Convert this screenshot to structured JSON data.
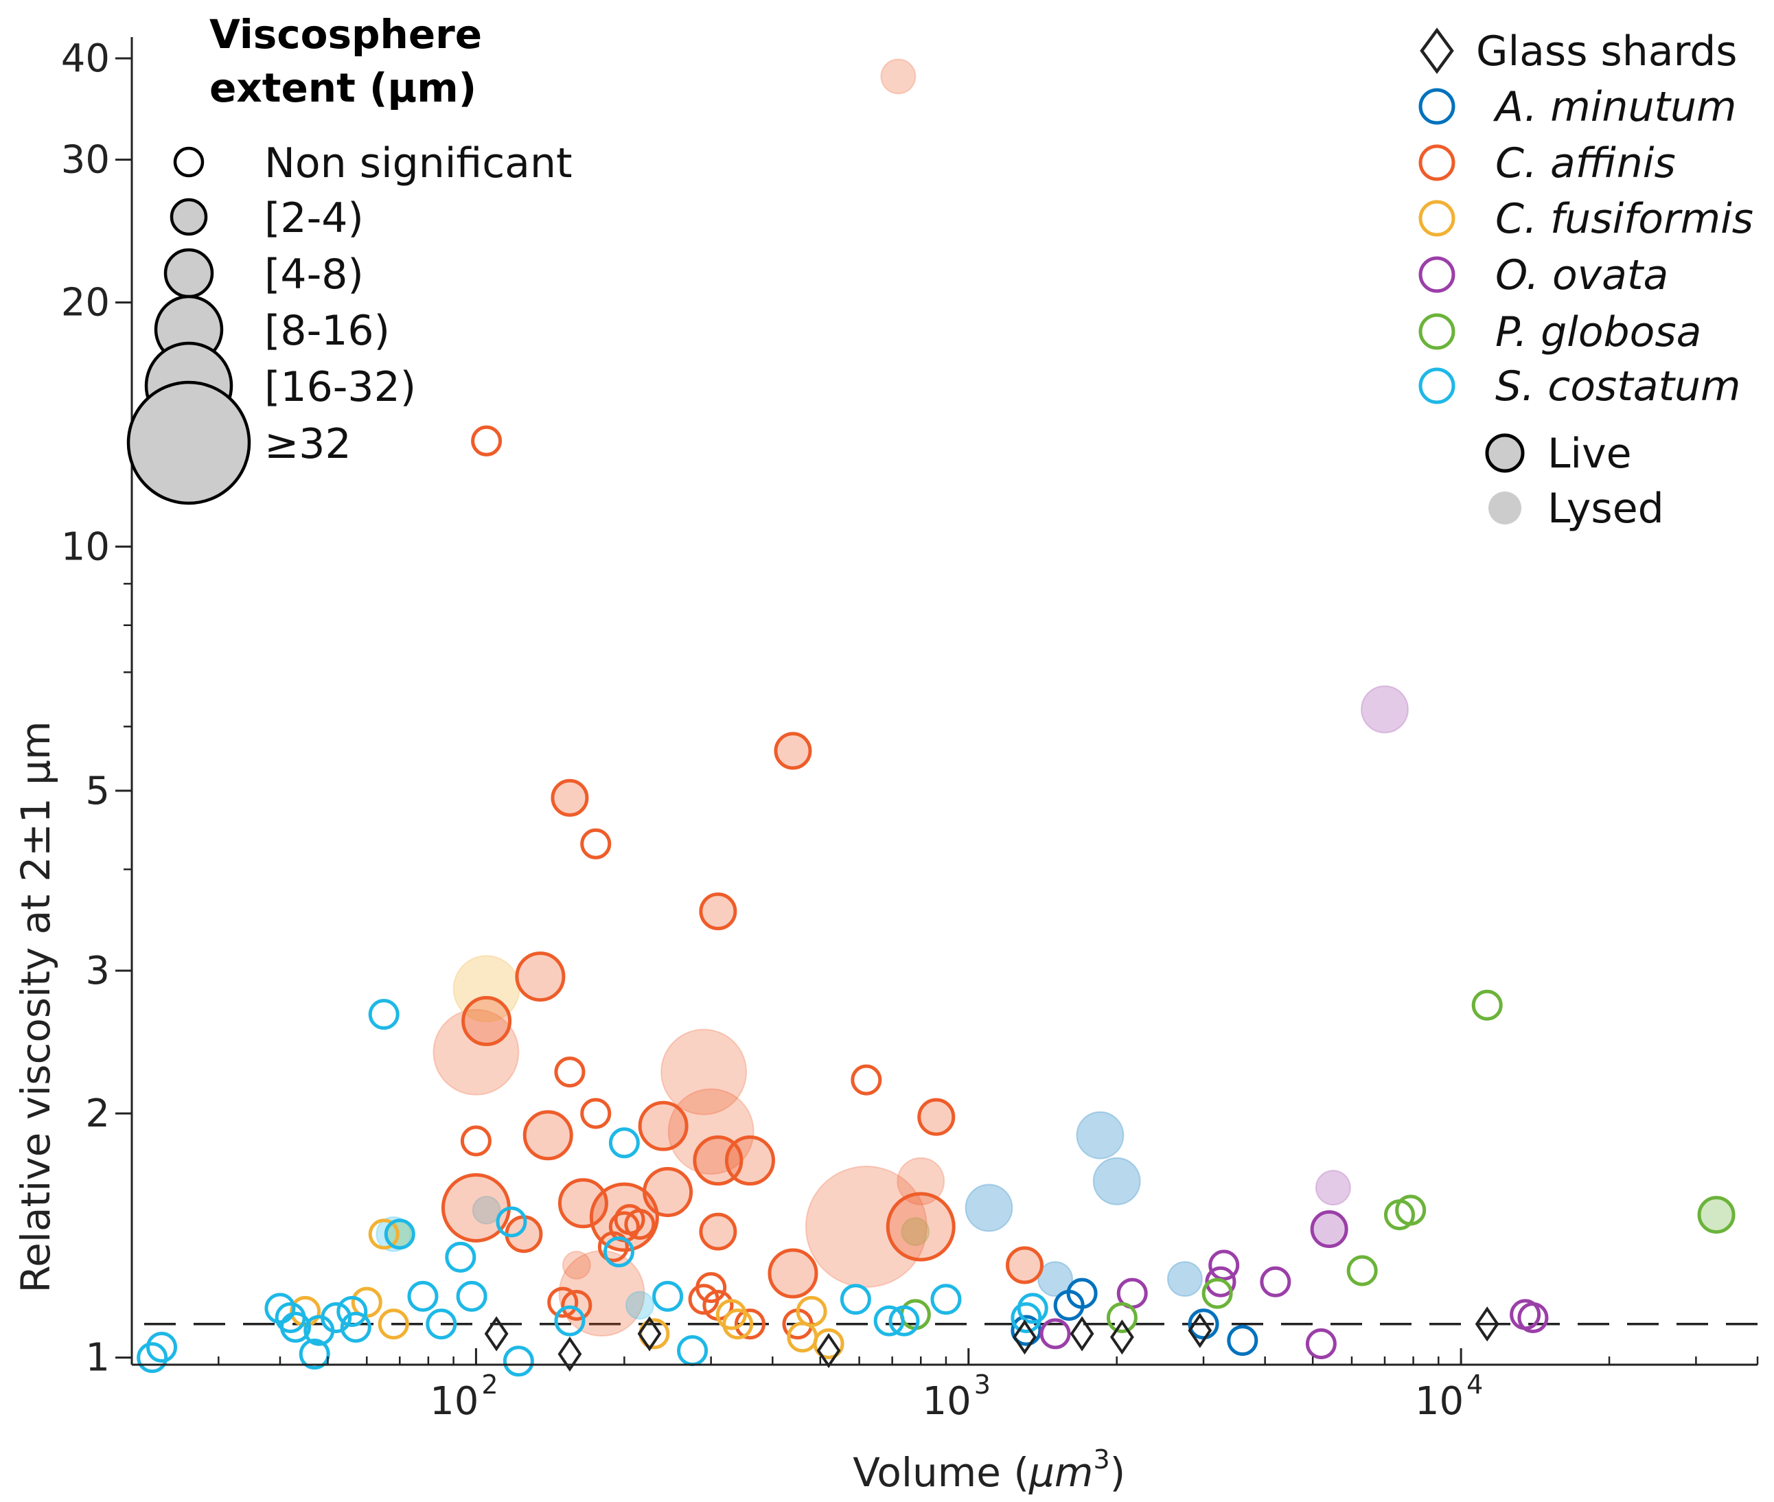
{
  "chart_data": {
    "type": "scatter",
    "xlabel_main": "Volume (",
    "xlabel_unit": "μm",
    "xlabel_exp": "3",
    "xlabel_close": ")",
    "ylabel": "Relative viscosity at 2±1 μm",
    "x_scale": "log",
    "y_scale": "log",
    "xlim": [
      20,
      40000
    ],
    "ylim": [
      0.98,
      42
    ],
    "y_ticks": [
      {
        "value": 1,
        "label": "1"
      },
      {
        "value": 2,
        "label": "2"
      },
      {
        "value": 3,
        "label": "3"
      },
      {
        "value": 5,
        "label": "5"
      },
      {
        "value": 10,
        "label": "10"
      },
      {
        "value": 20,
        "label": "20"
      },
      {
        "value": 30,
        "label": "30"
      },
      {
        "value": 40,
        "label": "40"
      }
    ],
    "y_minor_ticks": [
      4,
      6,
      7,
      8,
      9
    ],
    "x_ticks": [
      {
        "value": 100,
        "base": "10",
        "exp": "2"
      },
      {
        "value": 1000,
        "base": "10",
        "exp": "3"
      },
      {
        "value": 10000,
        "base": "10",
        "exp": "4"
      }
    ],
    "reference_line": {
      "y": 1.1,
      "style": "dashed",
      "color": "#222222"
    },
    "legend_size": {
      "title_line1": "Viscosphere",
      "title_line2": "extent (μm)",
      "entries": [
        {
          "label": "Non significant",
          "size": 0
        },
        {
          "label": "[2-4)",
          "size": 1
        },
        {
          "label": "[4-8)",
          "size": 2
        },
        {
          "label": "[8-16)",
          "size": 3
        },
        {
          "label": "[16-32)",
          "size": 4
        },
        {
          "label": "≥32",
          "size": 5
        }
      ]
    },
    "legend_species": [
      {
        "label": "Glass shards",
        "marker": "diamond",
        "color": "#222222",
        "italic": false
      },
      {
        "label": "A. minutum",
        "marker": "circle",
        "color": "#0072BD",
        "italic": true
      },
      {
        "label": "C. affinis",
        "marker": "circle",
        "color": "#EE5D2A",
        "italic": true
      },
      {
        "label": "C. fusiformis",
        "marker": "circle",
        "color": "#F2B134",
        "italic": true
      },
      {
        "label": "O. ovata",
        "marker": "circle",
        "color": "#9B3FA8",
        "italic": true
      },
      {
        "label": "P. globosa",
        "marker": "circle",
        "color": "#6BB33A",
        "italic": true
      },
      {
        "label": "S. costatum",
        "marker": "circle",
        "color": "#1EB8E6",
        "italic": true
      }
    ],
    "legend_state": [
      {
        "label": "Live",
        "style": "live"
      },
      {
        "label": "Lysed",
        "style": "lysed"
      }
    ],
    "series": [
      {
        "name": "Glass shards",
        "marker": "diamond",
        "color": "#222222",
        "points": [
          {
            "x": 110,
            "y": 1.07
          },
          {
            "x": 155,
            "y": 1.01
          },
          {
            "x": 225,
            "y": 1.07
          },
          {
            "x": 520,
            "y": 1.02
          },
          {
            "x": 1300,
            "y": 1.06
          },
          {
            "x": 1700,
            "y": 1.07
          },
          {
            "x": 2050,
            "y": 1.06
          },
          {
            "x": 2950,
            "y": 1.08
          },
          {
            "x": 11300,
            "y": 1.1
          }
        ]
      },
      {
        "name": "A. minutum",
        "marker": "circle",
        "color": "#0072BD",
        "points": [
          {
            "x": 1600,
            "y": 1.16,
            "size": 0,
            "state": "live"
          },
          {
            "x": 1700,
            "y": 1.2,
            "size": 0,
            "state": "live"
          },
          {
            "x": 1310,
            "y": 1.08,
            "size": 0,
            "state": "live"
          },
          {
            "x": 3000,
            "y": 1.1,
            "size": 0,
            "state": "live"
          },
          {
            "x": 3600,
            "y": 1.05,
            "size": 0,
            "state": "live"
          },
          {
            "x": 1500,
            "y": 1.25,
            "size": 1,
            "state": "lysed"
          },
          {
            "x": 2750,
            "y": 1.25,
            "size": 1,
            "state": "lysed"
          },
          {
            "x": 1850,
            "y": 1.88,
            "size": 2,
            "state": "lysed"
          },
          {
            "x": 2000,
            "y": 1.65,
            "size": 2,
            "state": "lysed"
          },
          {
            "x": 1100,
            "y": 1.53,
            "size": 2,
            "state": "lysed"
          }
        ]
      },
      {
        "name": "C. affinis",
        "marker": "circle",
        "color": "#EE5D2A",
        "points": [
          {
            "x": 105,
            "y": 13.5,
            "size": 0,
            "state": "live"
          },
          {
            "x": 100,
            "y": 1.85,
            "size": 0,
            "state": "live"
          },
          {
            "x": 155,
            "y": 2.25,
            "size": 0,
            "state": "live"
          },
          {
            "x": 175,
            "y": 2.0,
            "size": 0,
            "state": "live"
          },
          {
            "x": 175,
            "y": 4.3,
            "size": 0,
            "state": "live"
          },
          {
            "x": 620,
            "y": 2.2,
            "size": 0,
            "state": "live"
          },
          {
            "x": 300,
            "y": 1.22,
            "size": 0,
            "state": "live"
          },
          {
            "x": 290,
            "y": 1.18,
            "size": 0,
            "state": "live"
          },
          {
            "x": 310,
            "y": 1.16,
            "size": 0,
            "state": "live"
          },
          {
            "x": 360,
            "y": 1.1,
            "size": 0,
            "state": "live"
          },
          {
            "x": 450,
            "y": 1.1,
            "size": 0,
            "state": "live"
          },
          {
            "x": 150,
            "y": 1.17,
            "size": 0,
            "state": "live"
          },
          {
            "x": 160,
            "y": 1.16,
            "size": 0,
            "state": "live"
          },
          {
            "x": 200,
            "y": 1.45,
            "size": 0,
            "state": "live"
          },
          {
            "x": 205,
            "y": 1.48,
            "size": 0,
            "state": "live"
          },
          {
            "x": 215,
            "y": 1.46,
            "size": 0,
            "state": "live"
          },
          {
            "x": 190,
            "y": 1.37,
            "size": 0,
            "state": "live"
          },
          {
            "x": 155,
            "y": 4.9,
            "size": 1,
            "state": "live"
          },
          {
            "x": 440,
            "y": 5.6,
            "size": 1,
            "state": "live"
          },
          {
            "x": 310,
            "y": 3.55,
            "size": 1,
            "state": "live"
          },
          {
            "x": 860,
            "y": 1.98,
            "size": 1,
            "state": "live"
          },
          {
            "x": 1300,
            "y": 1.3,
            "size": 1,
            "state": "live"
          },
          {
            "x": 310,
            "y": 1.43,
            "size": 1,
            "state": "live"
          },
          {
            "x": 125,
            "y": 1.42,
            "size": 1,
            "state": "live"
          },
          {
            "x": 105,
            "y": 2.6,
            "size": 2,
            "state": "live"
          },
          {
            "x": 135,
            "y": 2.95,
            "size": 2,
            "state": "live"
          },
          {
            "x": 140,
            "y": 1.88,
            "size": 2,
            "state": "live"
          },
          {
            "x": 240,
            "y": 1.93,
            "size": 2,
            "state": "live"
          },
          {
            "x": 310,
            "y": 1.75,
            "size": 2,
            "state": "live"
          },
          {
            "x": 360,
            "y": 1.75,
            "size": 2,
            "state": "live"
          },
          {
            "x": 245,
            "y": 1.6,
            "size": 2,
            "state": "live"
          },
          {
            "x": 165,
            "y": 1.55,
            "size": 2,
            "state": "live"
          },
          {
            "x": 440,
            "y": 1.27,
            "size": 2,
            "state": "live"
          },
          {
            "x": 200,
            "y": 1.49,
            "size": 3,
            "state": "live"
          },
          {
            "x": 100,
            "y": 1.53,
            "size": 3,
            "state": "live"
          },
          {
            "x": 800,
            "y": 1.45,
            "size": 3,
            "state": "live"
          },
          {
            "x": 720,
            "y": 38,
            "size": 1,
            "state": "lysed"
          },
          {
            "x": 100,
            "y": 2.38,
            "size": 4,
            "state": "lysed"
          },
          {
            "x": 290,
            "y": 2.25,
            "size": 4,
            "state": "lysed"
          },
          {
            "x": 300,
            "y": 1.9,
            "size": 4,
            "state": "lysed"
          },
          {
            "x": 180,
            "y": 1.2,
            "size": 4,
            "state": "lysed"
          },
          {
            "x": 620,
            "y": 1.45,
            "size": 5,
            "state": "lysed"
          },
          {
            "x": 800,
            "y": 1.65,
            "size": 2,
            "state": "lysed"
          },
          {
            "x": 160,
            "y": 1.3,
            "size": 0,
            "state": "lysed"
          }
        ]
      },
      {
        "name": "C. fusiformis",
        "marker": "circle",
        "color": "#F2B134",
        "points": [
          {
            "x": 105,
            "y": 2.85,
            "size": 3,
            "state": "lysed"
          },
          {
            "x": 65,
            "y": 1.42,
            "size": 0,
            "state": "live"
          },
          {
            "x": 45,
            "y": 1.14,
            "size": 0,
            "state": "live"
          },
          {
            "x": 60,
            "y": 1.17,
            "size": 0,
            "state": "live"
          },
          {
            "x": 68,
            "y": 1.1,
            "size": 0,
            "state": "live"
          },
          {
            "x": 230,
            "y": 1.07,
            "size": 0,
            "state": "live"
          },
          {
            "x": 330,
            "y": 1.13,
            "size": 0,
            "state": "live"
          },
          {
            "x": 480,
            "y": 1.14,
            "size": 0,
            "state": "live"
          },
          {
            "x": 460,
            "y": 1.06,
            "size": 0,
            "state": "live"
          },
          {
            "x": 520,
            "y": 1.04,
            "size": 0,
            "state": "live"
          },
          {
            "x": 340,
            "y": 1.1,
            "size": 0,
            "state": "live"
          }
        ]
      },
      {
        "name": "O. ovata",
        "marker": "circle",
        "color": "#9B3FA8",
        "points": [
          {
            "x": 7000,
            "y": 6.3,
            "size": 2,
            "state": "lysed"
          },
          {
            "x": 5500,
            "y": 1.62,
            "size": 1,
            "state": "lysed"
          },
          {
            "x": 5400,
            "y": 1.44,
            "size": 1,
            "state": "live"
          },
          {
            "x": 3300,
            "y": 1.3,
            "size": 0,
            "state": "live"
          },
          {
            "x": 3250,
            "y": 1.24,
            "size": 0,
            "state": "live"
          },
          {
            "x": 4200,
            "y": 1.24,
            "size": 0,
            "state": "live"
          },
          {
            "x": 2150,
            "y": 1.2,
            "size": 0,
            "state": "live"
          },
          {
            "x": 1500,
            "y": 1.07,
            "size": 0,
            "state": "live"
          },
          {
            "x": 5200,
            "y": 1.04,
            "size": 0,
            "state": "live"
          },
          {
            "x": 13500,
            "y": 1.13,
            "size": 0,
            "state": "live"
          },
          {
            "x": 14000,
            "y": 1.12,
            "size": 0,
            "state": "live"
          }
        ]
      },
      {
        "name": "P. globosa",
        "marker": "circle",
        "color": "#6BB33A",
        "points": [
          {
            "x": 11300,
            "y": 2.72,
            "size": 0,
            "state": "live"
          },
          {
            "x": 33000,
            "y": 1.5,
            "size": 1,
            "state": "live"
          },
          {
            "x": 7500,
            "y": 1.5,
            "size": 0,
            "state": "live"
          },
          {
            "x": 7900,
            "y": 1.52,
            "size": 0,
            "state": "live"
          },
          {
            "x": 6300,
            "y": 1.28,
            "size": 0,
            "state": "live"
          },
          {
            "x": 3200,
            "y": 1.2,
            "size": 0,
            "state": "live"
          },
          {
            "x": 2050,
            "y": 1.12,
            "size": 0,
            "state": "live"
          },
          {
            "x": 780,
            "y": 1.43,
            "size": 0,
            "state": "lysed"
          },
          {
            "x": 780,
            "y": 1.13,
            "size": 0,
            "state": "live"
          },
          {
            "x": 70,
            "y": 1.42,
            "size": 0,
            "state": "lysed"
          }
        ]
      },
      {
        "name": "S. costatum",
        "marker": "circle",
        "color": "#1EB8E6",
        "points": [
          {
            "x": 65,
            "y": 2.65,
            "size": 0,
            "state": "live"
          },
          {
            "x": 22,
            "y": 1.0,
            "size": 0,
            "state": "live"
          },
          {
            "x": 23,
            "y": 1.03,
            "size": 0,
            "state": "live"
          },
          {
            "x": 40,
            "y": 1.15,
            "size": 0,
            "state": "live"
          },
          {
            "x": 42,
            "y": 1.12,
            "size": 0,
            "state": "live"
          },
          {
            "x": 43,
            "y": 1.09,
            "size": 0,
            "state": "live"
          },
          {
            "x": 48,
            "y": 1.08,
            "size": 0,
            "state": "live"
          },
          {
            "x": 47,
            "y": 1.01,
            "size": 0,
            "state": "live"
          },
          {
            "x": 52,
            "y": 1.12,
            "size": 0,
            "state": "live"
          },
          {
            "x": 56,
            "y": 1.14,
            "size": 0,
            "state": "live"
          },
          {
            "x": 57,
            "y": 1.09,
            "size": 0,
            "state": "live"
          },
          {
            "x": 70,
            "y": 1.42,
            "size": 0,
            "state": "live"
          },
          {
            "x": 78,
            "y": 1.19,
            "size": 0,
            "state": "live"
          },
          {
            "x": 85,
            "y": 1.1,
            "size": 0,
            "state": "live"
          },
          {
            "x": 93,
            "y": 1.33,
            "size": 0,
            "state": "live"
          },
          {
            "x": 98,
            "y": 1.19,
            "size": 0,
            "state": "live"
          },
          {
            "x": 118,
            "y": 1.47,
            "size": 0,
            "state": "live"
          },
          {
            "x": 122,
            "y": 0.99,
            "size": 0,
            "state": "live"
          },
          {
            "x": 155,
            "y": 1.11,
            "size": 0,
            "state": "live"
          },
          {
            "x": 195,
            "y": 1.35,
            "size": 0,
            "state": "live"
          },
          {
            "x": 200,
            "y": 1.84,
            "size": 0,
            "state": "live"
          },
          {
            "x": 245,
            "y": 1.19,
            "size": 0,
            "state": "live"
          },
          {
            "x": 275,
            "y": 1.02,
            "size": 0,
            "state": "live"
          },
          {
            "x": 590,
            "y": 1.18,
            "size": 0,
            "state": "live"
          },
          {
            "x": 690,
            "y": 1.11,
            "size": 0,
            "state": "live"
          },
          {
            "x": 740,
            "y": 1.11,
            "size": 0,
            "state": "live"
          },
          {
            "x": 900,
            "y": 1.18,
            "size": 0,
            "state": "live"
          },
          {
            "x": 1350,
            "y": 1.15,
            "size": 0,
            "state": "live"
          },
          {
            "x": 1310,
            "y": 1.12,
            "size": 0,
            "state": "live"
          },
          {
            "x": 105,
            "y": 1.52,
            "size": 0,
            "state": "lysed"
          },
          {
            "x": 215,
            "y": 1.16,
            "size": 0,
            "state": "lysed"
          },
          {
            "x": 68,
            "y": 1.42,
            "size": 1,
            "state": "lysed"
          }
        ]
      }
    ]
  }
}
